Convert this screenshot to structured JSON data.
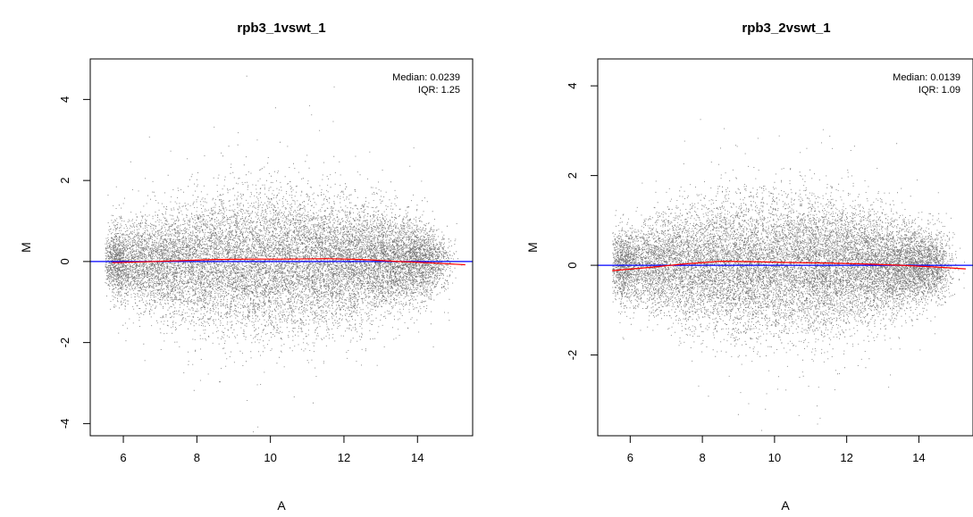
{
  "chart_data": [
    {
      "type": "scatter",
      "title": "rpb3_1vswt_1",
      "xlabel": "A",
      "ylabel": "M",
      "xlim": [
        5.1,
        15.5
      ],
      "ylim": [
        -4.3,
        5.0
      ],
      "xticks": [
        6,
        8,
        10,
        12,
        14
      ],
      "yticks": [
        -4,
        -2,
        0,
        2,
        4
      ],
      "annotations": [
        "Median: 0.0239",
        "IQR: 1.25"
      ],
      "reference_line": {
        "y": 0,
        "color": "#0000ff"
      },
      "loess_curve": {
        "color": "#ff0000",
        "x": [
          5.7,
          6.5,
          7.5,
          8.5,
          9.5,
          10.5,
          11.5,
          12.5,
          13.5,
          14.5,
          15.3
        ],
        "y": [
          -0.03,
          -0.01,
          0.02,
          0.05,
          0.06,
          0.06,
          0.07,
          0.05,
          0.0,
          -0.04,
          -0.08
        ]
      },
      "scatter_cloud": {
        "x_range": [
          5.5,
          15.3
        ],
        "y_range": [
          -3.2,
          4.6
        ],
        "approx_points": 16000,
        "color": "#000000"
      }
    },
    {
      "type": "scatter",
      "title": "rpb3_2vswt_1",
      "xlabel": "A",
      "ylabel": "M",
      "xlim": [
        5.1,
        15.5
      ],
      "ylim": [
        -3.8,
        4.6
      ],
      "xticks": [
        6,
        8,
        10,
        12,
        14
      ],
      "yticks": [
        -2,
        0,
        2,
        4
      ],
      "annotations": [
        "Median: 0.0139",
        "IQR: 1.09"
      ],
      "reference_line": {
        "y": 0,
        "color": "#0000ff"
      },
      "loess_curve": {
        "color": "#ff0000",
        "x": [
          5.5,
          6.5,
          7.5,
          8.5,
          9.5,
          10.5,
          11.5,
          12.5,
          13.5,
          14.5,
          15.3
        ],
        "y": [
          -0.12,
          -0.05,
          0.03,
          0.09,
          0.08,
          0.06,
          0.05,
          0.03,
          0.0,
          -0.04,
          -0.08
        ]
      },
      "scatter_cloud": {
        "x_range": [
          5.5,
          15.3
        ],
        "y_range": [
          -3.0,
          4.3
        ],
        "approx_points": 16000,
        "color": "#000000"
      }
    }
  ]
}
